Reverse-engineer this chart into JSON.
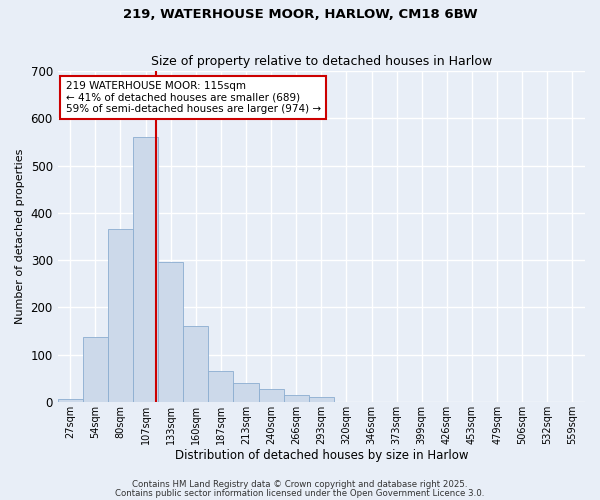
{
  "title1": "219, WATERHOUSE MOOR, HARLOW, CM18 6BW",
  "title2": "Size of property relative to detached houses in Harlow",
  "xlabel": "Distribution of detached houses by size in Harlow",
  "ylabel": "Number of detached properties",
  "categories": [
    "27sqm",
    "54sqm",
    "80sqm",
    "107sqm",
    "133sqm",
    "160sqm",
    "187sqm",
    "213sqm",
    "240sqm",
    "266sqm",
    "293sqm",
    "320sqm",
    "346sqm",
    "373sqm",
    "399sqm",
    "426sqm",
    "453sqm",
    "479sqm",
    "506sqm",
    "532sqm",
    "559sqm"
  ],
  "values": [
    5,
    137,
    365,
    560,
    295,
    160,
    65,
    40,
    28,
    15,
    10,
    0,
    0,
    0,
    0,
    0,
    0,
    0,
    0,
    0,
    0
  ],
  "bar_color": "#ccd9ea",
  "bar_edge_color": "#8badd0",
  "bg_color": "#e8eef7",
  "grid_color": "#ffffff",
  "vline_color": "#cc0000",
  "annotation_text": "219 WATERHOUSE MOOR: 115sqm\n← 41% of detached houses are smaller (689)\n59% of semi-detached houses are larger (974) →",
  "annotation_box_color": "#ffffff",
  "annotation_box_edge": "#cc0000",
  "footer1": "Contains HM Land Registry data © Crown copyright and database right 2025.",
  "footer2": "Contains public sector information licensed under the Open Government Licence 3.0.",
  "ylim": [
    0,
    700
  ],
  "yticks": [
    0,
    100,
    200,
    300,
    400,
    500,
    600,
    700
  ]
}
